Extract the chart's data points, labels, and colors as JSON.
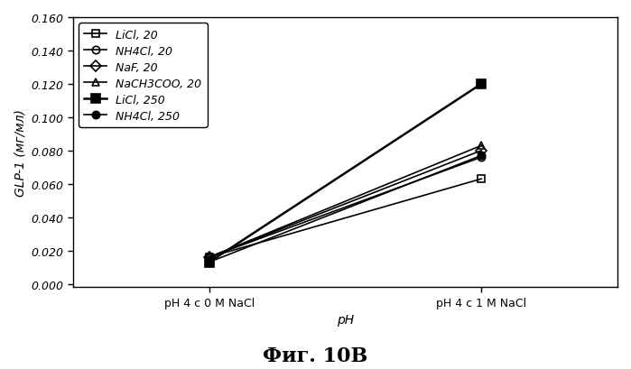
{
  "x_labels": [
    "pH 4 c 0 M NaCl",
    "pH 4 c 1 M NaCl"
  ],
  "x_positions": [
    1,
    3
  ],
  "xlim": [
    0,
    4
  ],
  "xlabel": "pH",
  "ylabel": "GLP-1 (мг/мл)",
  "ylim": [
    -0.002,
    0.16
  ],
  "yticks": [
    0.0,
    0.02,
    0.04,
    0.06,
    0.08,
    0.1,
    0.12,
    0.14,
    0.16
  ],
  "title_below": "Фиг. 10В",
  "series": [
    {
      "label": "LiCl, 20",
      "y": [
        0.016,
        0.063
      ],
      "color": "#000000",
      "marker": "s",
      "fillstyle": "none",
      "linewidth": 1.2,
      "markersize": 6
    },
    {
      "label": "NH4Cl, 20",
      "y": [
        0.016,
        0.076
      ],
      "color": "#000000",
      "marker": "o",
      "fillstyle": "none",
      "linewidth": 1.2,
      "markersize": 6
    },
    {
      "label": "NaF, 20",
      "y": [
        0.016,
        0.08
      ],
      "color": "#000000",
      "marker": "D",
      "fillstyle": "none",
      "linewidth": 1.2,
      "markersize": 6
    },
    {
      "label": "NaCH3COO, 20",
      "y": [
        0.016,
        0.083
      ],
      "color": "#000000",
      "marker": "^",
      "fillstyle": "none",
      "linewidth": 1.2,
      "markersize": 6
    },
    {
      "label": "LiCl, 250",
      "y": [
        0.013,
        0.12
      ],
      "color": "#000000",
      "marker": "s",
      "fillstyle": "full",
      "linewidth": 1.8,
      "markersize": 7
    },
    {
      "label": "NH4Cl, 250",
      "y": [
        0.013,
        0.077
      ],
      "color": "#000000",
      "marker": "o",
      "fillstyle": "full",
      "linewidth": 1.2,
      "markersize": 6
    }
  ],
  "legend_fontsize": 9,
  "axis_fontsize": 10,
  "tick_fontsize": 9,
  "background_color": "#ffffff"
}
